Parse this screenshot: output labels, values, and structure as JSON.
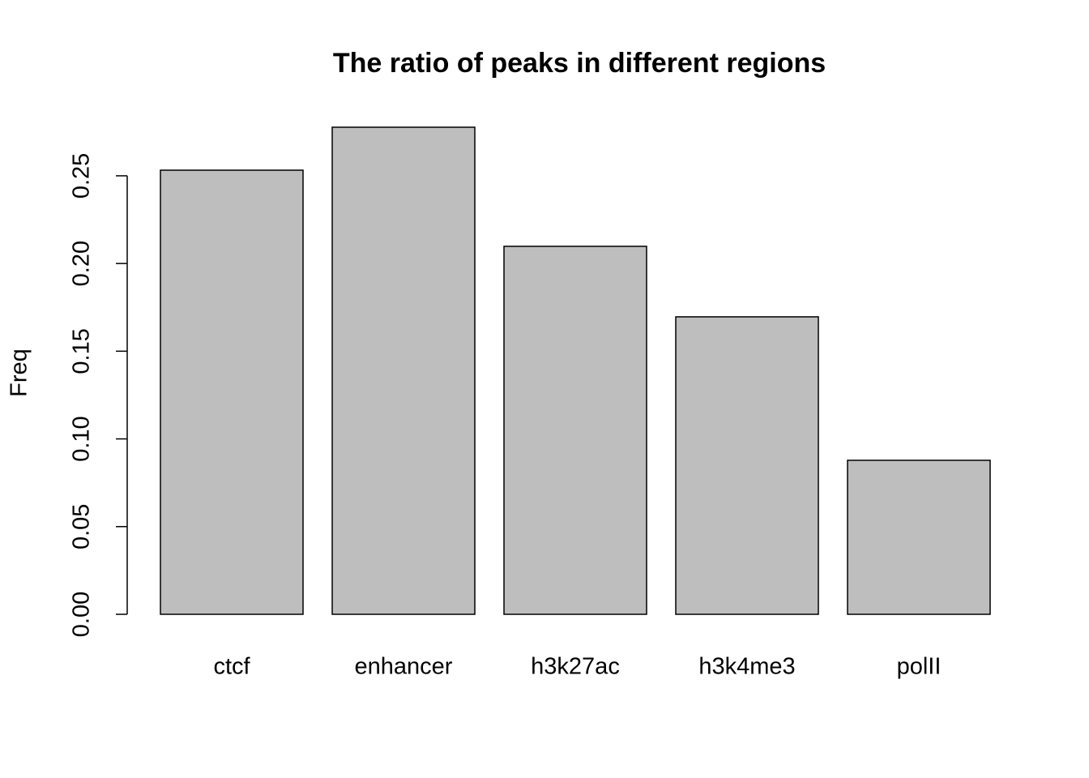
{
  "chart_data": {
    "type": "bar",
    "title": "The ratio of peaks in different regions",
    "y_label": "Freq",
    "categories": [
      "ctcf",
      "enhancer",
      "h3k27ac",
      "h3k4me3",
      "polII"
    ],
    "values": [
      0.2532,
      0.2777,
      0.2098,
      0.1696,
      0.0878
    ],
    "color": "#bebebe",
    "ylim": [
      0,
      0.28
    ],
    "yticks": [
      {
        "value": 0,
        "label": "0.00"
      },
      0.05,
      {
        "value": 0.1,
        "label": "0.10"
      },
      0.15,
      {
        "value": 0.2,
        "label": "0.20"
      },
      0.25
    ]
  }
}
